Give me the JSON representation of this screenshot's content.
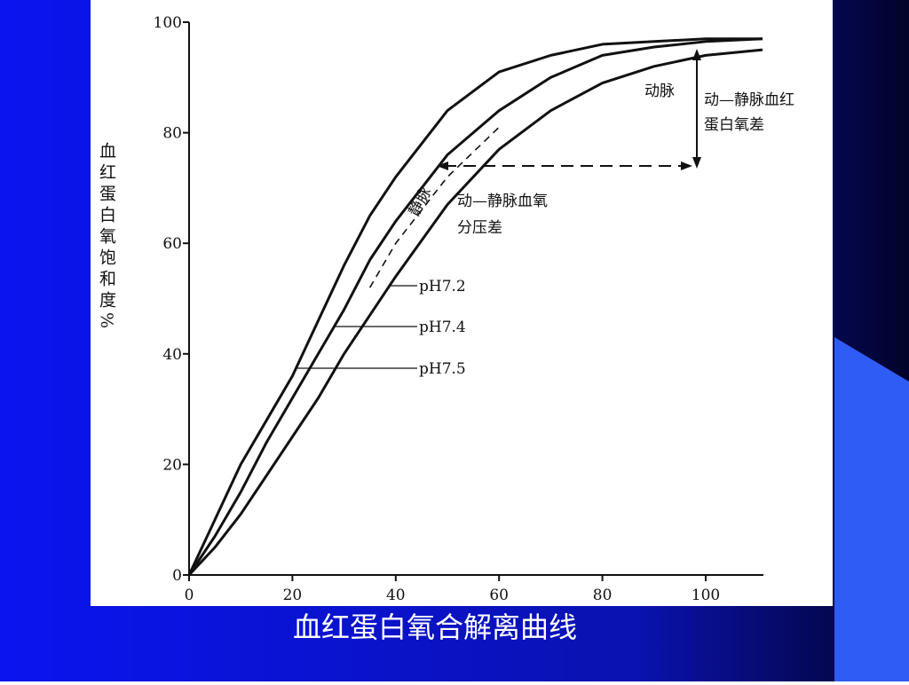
{
  "chart_data": {
    "type": "line",
    "title": "血红蛋白氧合解离曲线",
    "y_label": "血红蛋白氧饱和度%",
    "x": [
      0,
      5,
      10,
      15,
      20,
      25,
      30,
      35,
      40,
      50,
      60,
      70,
      80,
      90,
      100,
      111
    ],
    "series": [
      {
        "name": "pH7.5",
        "color": "#111111",
        "values": [
          0,
          10,
          20,
          28,
          36,
          46,
          56,
          65,
          72,
          84,
          91,
          94,
          96,
          96.5,
          97,
          97
        ]
      },
      {
        "name": "pH7.4",
        "color": "#111111",
        "values": [
          0,
          7,
          15,
          24,
          32,
          40,
          48,
          57,
          64,
          76,
          84,
          90,
          94,
          95.5,
          96.5,
          97
        ]
      },
      {
        "name": "pH7.2",
        "color": "#111111",
        "values": [
          0,
          5,
          11,
          18,
          25,
          32,
          40,
          47,
          54,
          67,
          77,
          84,
          89,
          92,
          94,
          95
        ]
      },
      {
        "color": "#111111",
        "dashed": true,
        "values": [
          null,
          null,
          null,
          null,
          null,
          null,
          null,
          52,
          60,
          72,
          81,
          null,
          null,
          null,
          null,
          null
        ]
      }
    ],
    "xlim": [
      0,
      111
    ],
    "ylim": [
      0,
      100
    ],
    "xticks": [
      0,
      20,
      40,
      60,
      80,
      100
    ],
    "yticks": [
      0,
      20,
      40,
      60,
      80,
      100
    ],
    "annotations": {
      "artery": "动脉",
      "vein": "静脉",
      "hb_diff": [
        "动—静脉血红",
        "蛋白氧差"
      ],
      "po2_diff": [
        "动—静脉血氧",
        "分压差"
      ]
    }
  }
}
